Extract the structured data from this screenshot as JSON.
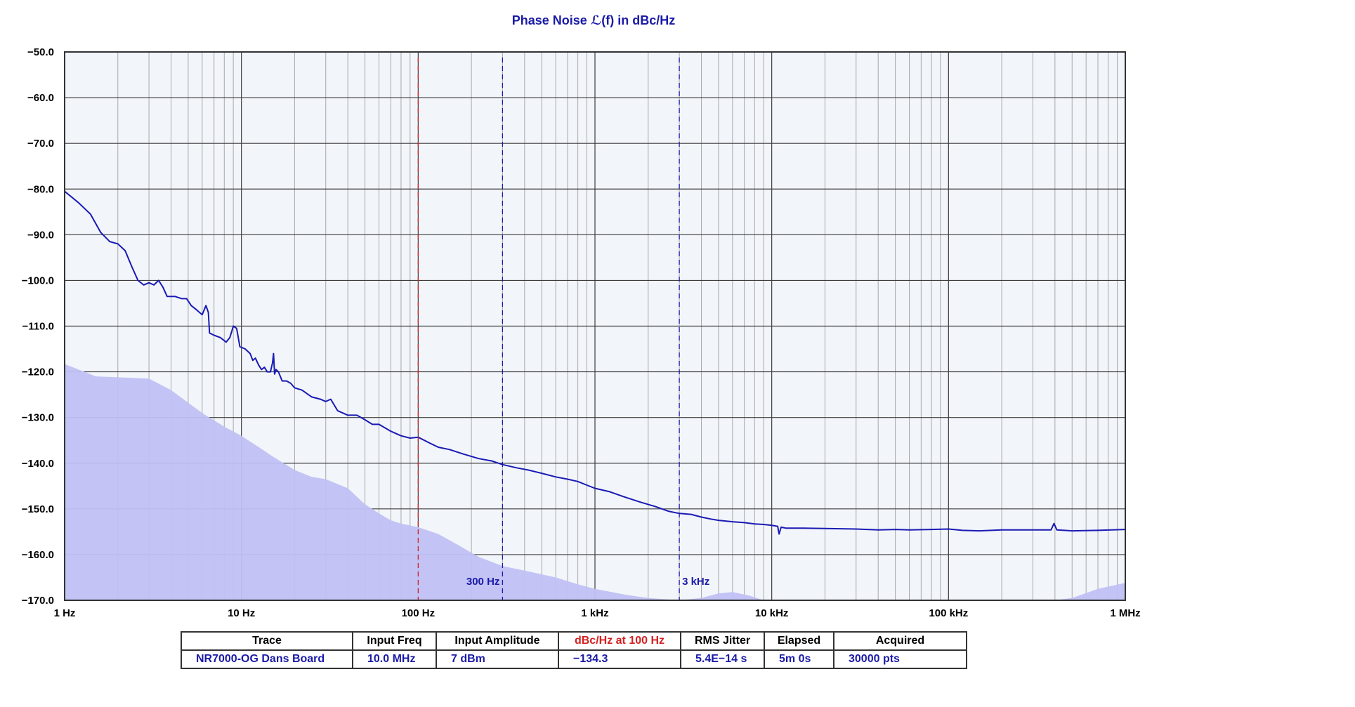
{
  "chart_data": {
    "type": "line",
    "title": "Phase Noise ℒ(f) in dBc/Hz",
    "x_scale": "log",
    "xlim": [
      1,
      1000000
    ],
    "ylim": [
      -170,
      -50
    ],
    "grid": true,
    "x_ticks": [
      {
        "value": 1,
        "label": "1 Hz"
      },
      {
        "value": 10,
        "label": "10 Hz"
      },
      {
        "value": 100,
        "label": "100 Hz"
      },
      {
        "value": 1000,
        "label": "1 kHz"
      },
      {
        "value": 10000,
        "label": "10 kHz"
      },
      {
        "value": 100000,
        "label": "100 kHz"
      },
      {
        "value": 1000000,
        "label": "1 MHz"
      }
    ],
    "y_ticks": [
      {
        "value": -50,
        "label": "−50.0"
      },
      {
        "value": -60,
        "label": "−60.0"
      },
      {
        "value": -70,
        "label": "−70.0"
      },
      {
        "value": -80,
        "label": "−80.0"
      },
      {
        "value": -90,
        "label": "−90.0"
      },
      {
        "value": -100,
        "label": "−100.0"
      },
      {
        "value": -110,
        "label": "−110.0"
      },
      {
        "value": -120,
        "label": "−120.0"
      },
      {
        "value": -130,
        "label": "−130.0"
      },
      {
        "value": -140,
        "label": "−140.0"
      },
      {
        "value": -150,
        "label": "−150.0"
      },
      {
        "value": -160,
        "label": "−160.0"
      },
      {
        "value": -170,
        "label": "−170.0"
      }
    ],
    "markers": [
      {
        "x": 100,
        "label": "",
        "color": "#d42020"
      },
      {
        "x": 300,
        "label": "300 Hz",
        "color": "#1a1aa8"
      },
      {
        "x": 3000,
        "label": "3 kHz",
        "color": "#1a1aa8"
      }
    ],
    "series": [
      {
        "color": "#1a1ab4",
        "points": [
          [
            1,
            -80.5
          ],
          [
            1.2,
            -83
          ],
          [
            1.4,
            -85.5
          ],
          [
            1.6,
            -89.5
          ],
          [
            1.8,
            -91.5
          ],
          [
            2.0,
            -92
          ],
          [
            2.2,
            -93.5
          ],
          [
            2.4,
            -97
          ],
          [
            2.6,
            -100
          ],
          [
            2.8,
            -101
          ],
          [
            3.0,
            -100.5
          ],
          [
            3.2,
            -101
          ],
          [
            3.4,
            -100
          ],
          [
            3.6,
            -101.5
          ],
          [
            3.8,
            -103.5
          ],
          [
            4.2,
            -103.5
          ],
          [
            4.6,
            -104
          ],
          [
            4.9,
            -104
          ],
          [
            5.2,
            -105.5
          ],
          [
            5.6,
            -106.5
          ],
          [
            6.0,
            -107.5
          ],
          [
            6.3,
            -105.5
          ],
          [
            6.5,
            -107
          ],
          [
            6.6,
            -111.5
          ],
          [
            7.0,
            -112
          ],
          [
            7.6,
            -112.5
          ],
          [
            8.2,
            -113.5
          ],
          [
            8.6,
            -112.5
          ],
          [
            9.0,
            -110
          ],
          [
            9.4,
            -110.5
          ],
          [
            9.8,
            -114.5
          ],
          [
            10.5,
            -115
          ],
          [
            11.2,
            -116
          ],
          [
            11.6,
            -117.5
          ],
          [
            12.0,
            -117
          ],
          [
            12.5,
            -118.5
          ],
          [
            13.0,
            -119.5
          ],
          [
            13.5,
            -119
          ],
          [
            14.0,
            -120
          ],
          [
            14.6,
            -120
          ],
          [
            15.0,
            -118
          ],
          [
            15.2,
            -116
          ],
          [
            15.4,
            -120.5
          ],
          [
            15.7,
            -119.5
          ],
          [
            16.2,
            -120
          ],
          [
            17.0,
            -122
          ],
          [
            18.0,
            -122
          ],
          [
            19.0,
            -122.5
          ],
          [
            20.0,
            -123.5
          ],
          [
            22.0,
            -124
          ],
          [
            25.0,
            -125.5
          ],
          [
            28.0,
            -126
          ],
          [
            30.0,
            -126.5
          ],
          [
            32.0,
            -126
          ],
          [
            35.0,
            -128.5
          ],
          [
            40.0,
            -129.5
          ],
          [
            45.0,
            -129.5
          ],
          [
            50.0,
            -130.5
          ],
          [
            55.0,
            -131.5
          ],
          [
            60.0,
            -131.5
          ],
          [
            70.0,
            -133
          ],
          [
            80.0,
            -134
          ],
          [
            90.0,
            -134.5
          ],
          [
            100.0,
            -134.3
          ],
          [
            115.0,
            -135.5
          ],
          [
            130.0,
            -136.5
          ],
          [
            150.0,
            -137
          ],
          [
            180.0,
            -138
          ],
          [
            220.0,
            -139
          ],
          [
            260.0,
            -139.5
          ],
          [
            300.0,
            -140.3
          ],
          [
            360.0,
            -141
          ],
          [
            420.0,
            -141.5
          ],
          [
            500.0,
            -142.2
          ],
          [
            600.0,
            -143
          ],
          [
            700.0,
            -143.5
          ],
          [
            800.0,
            -144
          ],
          [
            900.0,
            -144.8
          ],
          [
            1000.0,
            -145.5
          ],
          [
            1200.0,
            -146.2
          ],
          [
            1500.0,
            -147.5
          ],
          [
            1800.0,
            -148.5
          ],
          [
            2200.0,
            -149.5
          ],
          [
            2600.0,
            -150.5
          ],
          [
            3000.0,
            -151
          ],
          [
            3500.0,
            -151.2
          ],
          [
            4000.0,
            -151.8
          ],
          [
            4500.0,
            -152.2
          ],
          [
            5000.0,
            -152.5
          ],
          [
            6000.0,
            -152.8
          ],
          [
            7000.0,
            -153
          ],
          [
            8000.0,
            -153.3
          ],
          [
            9000.0,
            -153.4
          ],
          [
            10000.0,
            -153.6
          ],
          [
            10800.0,
            -153.8
          ],
          [
            11000.0,
            -155.5
          ],
          [
            11300.0,
            -154
          ],
          [
            12000.0,
            -154.2
          ],
          [
            15000.0,
            -154.2
          ],
          [
            20000.0,
            -154.3
          ],
          [
            30000.0,
            -154.4
          ],
          [
            40000.0,
            -154.6
          ],
          [
            50000.0,
            -154.5
          ],
          [
            60000.0,
            -154.6
          ],
          [
            80000.0,
            -154.5
          ],
          [
            100000.0,
            -154.4
          ],
          [
            120000.0,
            -154.7
          ],
          [
            150000.0,
            -154.8
          ],
          [
            200000.0,
            -154.6
          ],
          [
            300000.0,
            -154.6
          ],
          [
            380000.0,
            -154.6
          ],
          [
            395000.0,
            -153.2
          ],
          [
            410000.0,
            -154.6
          ],
          [
            500000.0,
            -154.8
          ],
          [
            700000.0,
            -154.7
          ],
          [
            1000000.0,
            -154.5
          ]
        ]
      },
      {
        "color": "#c0c0f4",
        "fill": true,
        "points": [
          [
            1,
            -118.3
          ],
          [
            1.5,
            -121
          ],
          [
            2,
            -121.2
          ],
          [
            3,
            -121.5
          ],
          [
            4,
            -124
          ],
          [
            6,
            -129
          ],
          [
            8,
            -132
          ],
          [
            10,
            -134
          ],
          [
            12,
            -136
          ],
          [
            15,
            -138.5
          ],
          [
            20,
            -141.5
          ],
          [
            25,
            -143
          ],
          [
            30,
            -143.5
          ],
          [
            40,
            -145.5
          ],
          [
            50,
            -149
          ],
          [
            60,
            -151
          ],
          [
            70,
            -152.5
          ],
          [
            80,
            -153.2
          ],
          [
            100,
            -154
          ],
          [
            130,
            -155.5
          ],
          [
            170,
            -158
          ],
          [
            220,
            -160.5
          ],
          [
            300,
            -162.5
          ],
          [
            400,
            -163.5
          ],
          [
            600,
            -165
          ],
          [
            800,
            -166.5
          ],
          [
            1000,
            -167.5
          ],
          [
            1500,
            -168.8
          ],
          [
            2000,
            -169.5
          ],
          [
            3000,
            -170
          ],
          [
            4000,
            -169.5
          ],
          [
            5000,
            -168.5
          ],
          [
            6000,
            -168.2
          ],
          [
            7500,
            -169
          ],
          [
            9000,
            -170
          ],
          [
            20000,
            -170
          ],
          [
            100000,
            -170
          ],
          [
            400000,
            -170
          ],
          [
            500000,
            -169.5
          ],
          [
            700000,
            -167.5
          ],
          [
            1000000,
            -166.2
          ]
        ]
      }
    ]
  },
  "info_table": {
    "headers": [
      "Trace",
      "Input Freq",
      "Input Amplitude",
      "dBc/Hz at 100 Hz",
      "RMS Jitter",
      "Elapsed",
      "Acquired"
    ],
    "row": [
      "NR7000-OG Dans Board",
      "10.0 MHz",
      "7 dBm",
      "−134.3",
      "5.4E−14 s",
      "5m 0s",
      "30000 pts"
    ],
    "highlight_color": "#d42020"
  }
}
